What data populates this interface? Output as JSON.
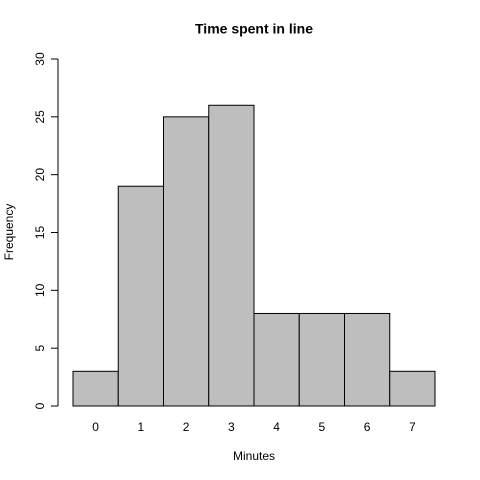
{
  "chart_data": {
    "type": "bar",
    "title": "Time spent in line",
    "x_label": "Minutes",
    "y_label": "Frequency",
    "categories": [
      "0",
      "1",
      "2",
      "3",
      "4",
      "5",
      "6",
      "7"
    ],
    "values": [
      3,
      19,
      25,
      26,
      8,
      8,
      8,
      3
    ],
    "color": "#bebebe",
    "ylim": [
      0,
      30
    ],
    "yticks": [
      0,
      5,
      10,
      15,
      20,
      25,
      30
    ]
  }
}
